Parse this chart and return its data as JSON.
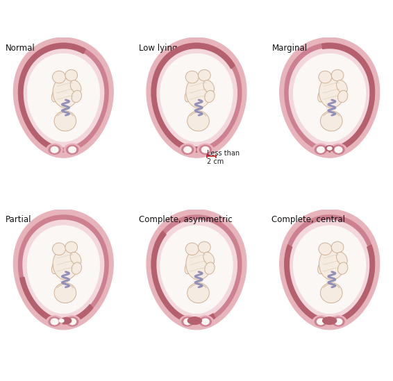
{
  "titles": [
    "Normal",
    "Low lying",
    "Marginal",
    "Partial",
    "Complete, asymmetric",
    "Complete, central"
  ],
  "bg_color": "#ffffff",
  "uterus_outer_color": "#e8b4bc",
  "uterus_mid_color": "#cc8090",
  "uterus_inner_light": "#f2d8dd",
  "placenta_color": "#b5606e",
  "amniotic_color": "#faf7f5",
  "fetus_skin_color": "#f5ebe0",
  "fetus_outline_color": "#c8a888",
  "cord_color": "#9090bb",
  "annotation_color": "#222222",
  "font_size_title": 8.5,
  "font_size_annot": 7.0
}
